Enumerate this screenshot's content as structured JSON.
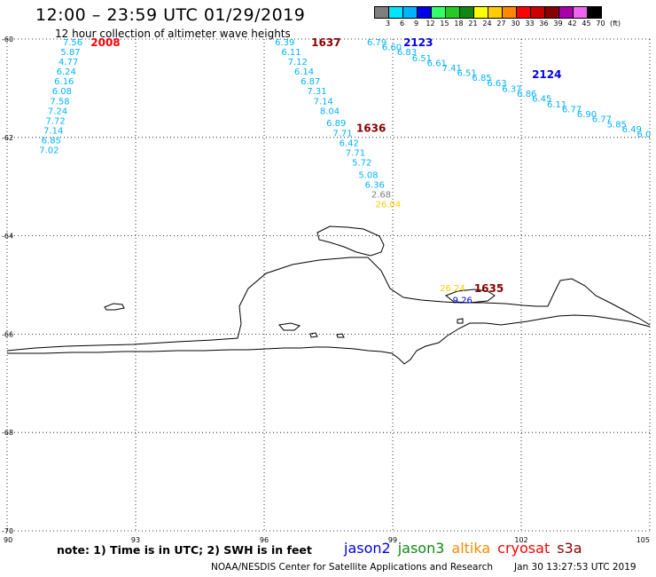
{
  "header": {
    "title": "12:00 – 23:59 UTC 01/29/2019",
    "subtitle": "12 hour collection of altimeter wave heights"
  },
  "legend": {
    "unit": "(ft)",
    "bins": [
      {
        "label": "3",
        "color": "#7f7f7f"
      },
      {
        "label": "6",
        "color": "#00e5ff"
      },
      {
        "label": "9",
        "color": "#00b2ff"
      },
      {
        "label": "12",
        "color": "#0000e6"
      },
      {
        "label": "15",
        "color": "#33ff66"
      },
      {
        "label": "18",
        "color": "#22cc22"
      },
      {
        "label": "21",
        "color": "#118811"
      },
      {
        "label": "24",
        "color": "#ffff00"
      },
      {
        "label": "27",
        "color": "#ffcc00"
      },
      {
        "label": "30",
        "color": "#ff8800"
      },
      {
        "label": "33",
        "color": "#ff0000"
      },
      {
        "label": "36",
        "color": "#cc0000"
      },
      {
        "label": "39",
        "color": "#880000"
      },
      {
        "label": "42",
        "color": "#aa00aa"
      },
      {
        "label": "45",
        "color": "#ee66ee"
      },
      {
        "label": "70",
        "color": "#000000"
      }
    ]
  },
  "axes": {
    "lon_min": 90,
    "lon_max": 105,
    "lat_min": -70,
    "lat_max": -60,
    "x_ticks": [
      "90",
      "93",
      "96",
      "99",
      "102",
      "105"
    ],
    "y_ticks": [
      "-60",
      "-62",
      "-64",
      "-66",
      "-68",
      "-70"
    ],
    "grid": "dotted"
  },
  "passes": [
    {
      "time": "2008",
      "color": "#ff0000",
      "lon": 91.95,
      "lat": -60.05
    },
    {
      "time": "1637",
      "color": "#880000",
      "lon": 97.1,
      "lat": -60.05
    },
    {
      "time": "1636",
      "color": "#880000",
      "lon": 98.15,
      "lat": -61.8
    },
    {
      "time": "2123",
      "color": "#0000e6",
      "lon": 99.25,
      "lat": -60.05
    },
    {
      "time": "2124",
      "color": "#0000e6",
      "lon": 102.25,
      "lat": -60.7
    },
    {
      "time": "1635",
      "color": "#880000",
      "lon": 100.9,
      "lat": -65.05
    }
  ],
  "obs": [
    {
      "v": "7.56",
      "lon": 91.3,
      "lat": -60.05,
      "c": "#00b2ff"
    },
    {
      "v": "5.87",
      "lon": 91.25,
      "lat": -60.25,
      "c": "#00b2ff"
    },
    {
      "v": "4.77",
      "lon": 91.2,
      "lat": -60.45,
      "c": "#00b2ff"
    },
    {
      "v": "6.24",
      "lon": 91.15,
      "lat": -60.65,
      "c": "#00b2ff"
    },
    {
      "v": "6.16",
      "lon": 91.1,
      "lat": -60.85,
      "c": "#00b2ff"
    },
    {
      "v": "6.08",
      "lon": 91.05,
      "lat": -61.05,
      "c": "#00b2ff"
    },
    {
      "v": "7.58",
      "lon": 91.0,
      "lat": -61.25,
      "c": "#00b2ff"
    },
    {
      "v": "7.24",
      "lon": 90.95,
      "lat": -61.45,
      "c": "#00b2ff"
    },
    {
      "v": "7.72",
      "lon": 90.9,
      "lat": -61.65,
      "c": "#00b2ff"
    },
    {
      "v": "7.14",
      "lon": 90.85,
      "lat": -61.85,
      "c": "#00b2ff"
    },
    {
      "v": "6.85",
      "lon": 90.8,
      "lat": -62.05,
      "c": "#00b2ff"
    },
    {
      "v": "7.02",
      "lon": 90.75,
      "lat": -62.25,
      "c": "#00b2ff"
    },
    {
      "v": "6.39",
      "lon": 96.25,
      "lat": -60.05,
      "c": "#00b2ff"
    },
    {
      "v": "6.11",
      "lon": 96.4,
      "lat": -60.25,
      "c": "#00b2ff"
    },
    {
      "v": "7.12",
      "lon": 96.55,
      "lat": -60.45,
      "c": "#00b2ff"
    },
    {
      "v": "6.14",
      "lon": 96.7,
      "lat": -60.65,
      "c": "#00b2ff"
    },
    {
      "v": "6.87",
      "lon": 96.85,
      "lat": -60.85,
      "c": "#00b2ff"
    },
    {
      "v": "7.31",
      "lon": 97.0,
      "lat": -61.05,
      "c": "#00b2ff"
    },
    {
      "v": "7.14",
      "lon": 97.15,
      "lat": -61.25,
      "c": "#00b2ff"
    },
    {
      "v": "8.04",
      "lon": 97.3,
      "lat": -61.45,
      "c": "#00b2ff"
    },
    {
      "v": "6.89",
      "lon": 97.45,
      "lat": -61.7,
      "c": "#00b2ff"
    },
    {
      "v": "7.71",
      "lon": 97.6,
      "lat": -61.9,
      "c": "#00b2ff"
    },
    {
      "v": "6.42",
      "lon": 97.75,
      "lat": -62.1,
      "c": "#00b2ff"
    },
    {
      "v": "7.71",
      "lon": 97.9,
      "lat": -62.3,
      "c": "#00b2ff"
    },
    {
      "v": "5.72",
      "lon": 98.05,
      "lat": -62.5,
      "c": "#00b2ff"
    },
    {
      "v": "5.08",
      "lon": 98.2,
      "lat": -62.75,
      "c": "#00b2ff"
    },
    {
      "v": "6.36",
      "lon": 98.35,
      "lat": -62.95,
      "c": "#00b2ff"
    },
    {
      "v": "2.68",
      "lon": 98.5,
      "lat": -63.15,
      "c": "#7f7f7f"
    },
    {
      "v": "26.04",
      "lon": 98.6,
      "lat": -63.35,
      "c": "#ffcc00"
    },
    {
      "v": "6.79",
      "lon": 98.4,
      "lat": -60.05,
      "c": "#00b2ff"
    },
    {
      "v": "6.60",
      "lon": 98.75,
      "lat": -60.15,
      "c": "#00b2ff"
    },
    {
      "v": "6.83",
      "lon": 99.1,
      "lat": -60.25,
      "c": "#00b2ff"
    },
    {
      "v": "6.51",
      "lon": 99.45,
      "lat": -60.38,
      "c": "#00b2ff"
    },
    {
      "v": "6.61",
      "lon": 99.8,
      "lat": -60.48,
      "c": "#00b2ff"
    },
    {
      "v": "7.41",
      "lon": 100.15,
      "lat": -60.58,
      "c": "#00b2ff"
    },
    {
      "v": "6.51",
      "lon": 100.5,
      "lat": -60.68,
      "c": "#00b2ff"
    },
    {
      "v": "6.85",
      "lon": 100.85,
      "lat": -60.78,
      "c": "#00b2ff"
    },
    {
      "v": "6.63",
      "lon": 101.2,
      "lat": -60.88,
      "c": "#00b2ff"
    },
    {
      "v": "6.37",
      "lon": 101.55,
      "lat": -61.0,
      "c": "#00b2ff"
    },
    {
      "v": "6.86",
      "lon": 101.9,
      "lat": -61.1,
      "c": "#00b2ff"
    },
    {
      "v": "6.45",
      "lon": 102.25,
      "lat": -61.2,
      "c": "#00b2ff"
    },
    {
      "v": "6.11",
      "lon": 102.6,
      "lat": -61.32,
      "c": "#00b2ff"
    },
    {
      "v": "6.77",
      "lon": 102.95,
      "lat": -61.42,
      "c": "#00b2ff"
    },
    {
      "v": "6.90",
      "lon": 103.3,
      "lat": -61.52,
      "c": "#00b2ff"
    },
    {
      "v": "6.77",
      "lon": 103.65,
      "lat": -61.62,
      "c": "#00b2ff"
    },
    {
      "v": "5.85",
      "lon": 104.0,
      "lat": -61.72,
      "c": "#00b2ff"
    },
    {
      "v": "6.49",
      "lon": 104.35,
      "lat": -61.82,
      "c": "#00b2ff"
    },
    {
      "v": "6.0",
      "lon": 104.7,
      "lat": -61.92,
      "c": "#00b2ff"
    },
    {
      "v": "26.24",
      "lon": 100.1,
      "lat": -65.05,
      "c": "#ffcc00"
    },
    {
      "v": "9.26",
      "lon": 100.4,
      "lat": -65.3,
      "c": "#0000e6"
    }
  ],
  "footer": {
    "note": "note:  1) Time is in UTC;  2) SWH is in feet",
    "satellites": [
      {
        "name": "jason2",
        "color": "#0000e6"
      },
      {
        "name": "jason3",
        "color": "#118811"
      },
      {
        "name": "altika",
        "color": "#ff8800"
      },
      {
        "name": "cryosat",
        "color": "#ff0000"
      },
      {
        "name": "s3a",
        "color": "#880000"
      }
    ],
    "credit": "NOAA/NESDIS Center for Satellite Applications and Research",
    "timestamp": "Jan 30 13:27:53 UTC 2019"
  }
}
